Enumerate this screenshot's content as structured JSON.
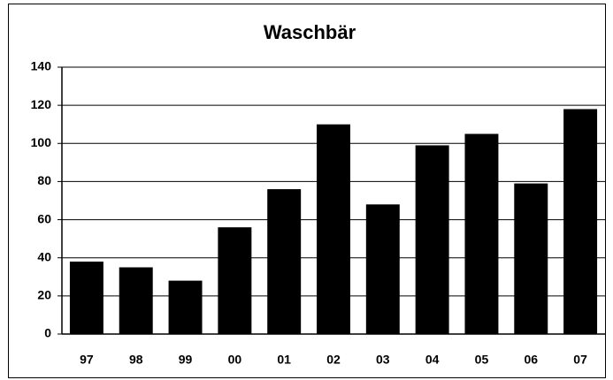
{
  "chart_data": {
    "type": "bar",
    "title": "Waschbär",
    "categories": [
      "97",
      "98",
      "99",
      "00",
      "01",
      "02",
      "03",
      "04",
      "05",
      "06",
      "07"
    ],
    "values": [
      38,
      35,
      28,
      56,
      76,
      110,
      68,
      99,
      105,
      79,
      118
    ],
    "color": "#000000",
    "ylim": [
      0,
      140
    ],
    "yticks": [
      0,
      20,
      40,
      60,
      80,
      100,
      120,
      140
    ],
    "grid": true
  }
}
